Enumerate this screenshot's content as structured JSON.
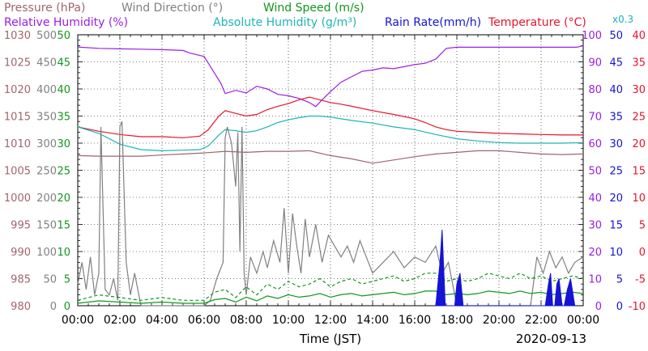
{
  "legend": {
    "pressure": {
      "label": "Pressure (hPa)",
      "color": "#a0646e"
    },
    "wind_direction": {
      "label": "Wind Direction (°)",
      "color": "#808080"
    },
    "wind_speed": {
      "label": "Wind Speed (m/s)",
      "color": "#12961e"
    },
    "relative_humidity": {
      "label": "Relative Humidity (%)",
      "color": "#9b1ee6"
    },
    "absolute_humidity": {
      "label": "Absolute Humidity (g/m³)",
      "color": "#1eb4b4"
    },
    "rain_rate": {
      "label": "Rain Rate(mm/h)",
      "color": "#1414d2"
    },
    "temperature": {
      "label": "Temperature (°C)",
      "color": "#e6142d"
    },
    "scale_note": {
      "label": "x0.3",
      "color": "#1eb4b4"
    }
  },
  "chart_data": {
    "type": "line",
    "xlabel": "Time (JST)",
    "date": "2020-09-13",
    "x_ticks": [
      "00:00",
      "02:00",
      "04:00",
      "06:00",
      "08:00",
      "10:00",
      "12:00",
      "14:00",
      "16:00",
      "18:00",
      "20:00",
      "22:00",
      "00:00"
    ],
    "axes": {
      "pressure": {
        "ticks": [
          "980",
          "985",
          "990",
          "995",
          "1000",
          "1005",
          "1010",
          "1015",
          "1020",
          "1025",
          "1030"
        ],
        "range": [
          980,
          1030
        ],
        "color": "#a0646e"
      },
      "wind_direction": {
        "ticks": [
          "0",
          "50",
          "100",
          "150",
          "200",
          "250",
          "300",
          "350",
          "400",
          "450",
          "500"
        ],
        "range": [
          0,
          500
        ],
        "color": "#808080"
      },
      "wind_speed": {
        "ticks": [
          "0",
          "5",
          "10",
          "15",
          "20",
          "25",
          "30",
          "35",
          "40",
          "45",
          "50"
        ],
        "range": [
          0,
          50
        ],
        "color": "#12961e"
      },
      "relative_humidity": {
        "ticks": [
          "0",
          "10",
          "20",
          "30",
          "40",
          "50",
          "60",
          "70",
          "80",
          "90",
          "100"
        ],
        "range": [
          0,
          100
        ],
        "color": "#9b1ee6"
      },
      "rain_rate": {
        "ticks": [
          "0",
          "5",
          "10",
          "15",
          "20",
          "25",
          "30",
          "35",
          "40",
          "45",
          "50"
        ],
        "range": [
          0,
          50
        ],
        "color": "#1414d2"
      },
      "temperature": {
        "ticks": [
          "-10",
          "-5",
          "0",
          "5",
          "10",
          "15",
          "20",
          "25",
          "30",
          "35",
          "40"
        ],
        "range": [
          -10,
          40
        ],
        "color": "#e6142d"
      }
    },
    "series": [
      {
        "name": "Pressure (hPa)",
        "axis": "pressure",
        "x": [
          0,
          1,
          2,
          3,
          4,
          5,
          6,
          7,
          8,
          9,
          10,
          11,
          12,
          13,
          14,
          15,
          16,
          17,
          18,
          19,
          20,
          21,
          22,
          23,
          24
        ],
        "y": [
          1007.7,
          1007.6,
          1007.6,
          1007.6,
          1007.8,
          1008.0,
          1008.2,
          1008.5,
          1008.3,
          1008.5,
          1008.5,
          1008.6,
          1007.7,
          1007.1,
          1006.3,
          1006.9,
          1007.5,
          1008.0,
          1008.3,
          1008.6,
          1008.6,
          1008.3,
          1008.0,
          1007.9,
          1008.0
        ]
      },
      {
        "name": "Relative Humidity (%)",
        "axis": "relative_humidity",
        "x": [
          0,
          1,
          2,
          3,
          4,
          5,
          5.3,
          6,
          6.8,
          7,
          7.5,
          8,
          8.5,
          9,
          9.5,
          10,
          10.5,
          11,
          11.3,
          11.6,
          12,
          12.5,
          13,
          13.5,
          14,
          14.5,
          15,
          16,
          16.5,
          17,
          17.5,
          18,
          19,
          20,
          21,
          22,
          23,
          23.7,
          24
        ],
        "y": [
          95.5,
          95.0,
          94.8,
          94.7,
          94.5,
          94.2,
          93.3,
          92.0,
          82.0,
          78.3,
          79.5,
          78.5,
          81.0,
          80.0,
          78.0,
          77.5,
          76.5,
          75.0,
          73.5,
          76.0,
          79.0,
          82.5,
          84.5,
          86.5,
          87.0,
          87.8,
          87.5,
          89.0,
          89.5,
          91.0,
          95.0,
          95.4,
          95.4,
          95.4,
          95.4,
          95.4,
          95.4,
          95.4,
          96.0
        ]
      },
      {
        "name": "Temperature (°C)",
        "axis": "temperature",
        "x": [
          0,
          1,
          2,
          3,
          4,
          5,
          5.8,
          6.2,
          6.7,
          7,
          7.5,
          8,
          8.5,
          9,
          9.5,
          10,
          10.5,
          11,
          11.5,
          12,
          12.5,
          13,
          14,
          15,
          16,
          16.5,
          17,
          17.5,
          18,
          19,
          20,
          21,
          22,
          23,
          24
        ],
        "y": [
          23.0,
          22.2,
          21.6,
          21.2,
          21.2,
          21.0,
          21.3,
          22.5,
          25.0,
          26.0,
          25.5,
          25.0,
          25.3,
          26.2,
          26.8,
          27.3,
          28.0,
          28.5,
          28.0,
          27.5,
          27.2,
          26.8,
          26.0,
          25.3,
          24.5,
          23.8,
          23.0,
          22.5,
          22.2,
          22.0,
          21.8,
          21.7,
          21.6,
          21.5,
          21.5
        ]
      },
      {
        "name": "Absolute Humidity (g/m³)",
        "axis": "temperature",
        "x": [
          0,
          1,
          2,
          3,
          4,
          5,
          5.8,
          6.2,
          6.7,
          7,
          7.5,
          8,
          8.5,
          9,
          9.5,
          10,
          10.5,
          11,
          11.5,
          12,
          12.5,
          13,
          14,
          15,
          16,
          17,
          18,
          19,
          20,
          21,
          22,
          23,
          24
        ],
        "y": [
          23.0,
          21.8,
          19.8,
          18.8,
          18.6,
          18.7,
          18.8,
          19.5,
          21.5,
          22.5,
          22.3,
          22.0,
          22.3,
          23.0,
          23.8,
          24.3,
          24.7,
          25.0,
          25.0,
          24.8,
          24.5,
          24.2,
          23.7,
          23.0,
          22.5,
          21.6,
          20.8,
          20.4,
          20.1,
          20.0,
          20.0,
          20.0,
          20.1
        ]
      },
      {
        "name": "Wind Direction (°)",
        "axis": "wind_direction",
        "x": [
          0,
          0.2,
          0.4,
          0.6,
          0.8,
          1.0,
          1.1,
          1.3,
          1.5,
          1.7,
          1.9,
          2.0,
          2.1,
          2.3,
          2.5,
          2.7,
          3,
          3.5,
          4,
          4.5,
          5,
          5.5,
          6,
          6.3,
          6.6,
          6.9,
          7.0,
          7.1,
          7.3,
          7.5,
          7.6,
          7.7,
          7.8,
          7.9,
          8.0,
          8.2,
          8.5,
          8.8,
          9.0,
          9.3,
          9.6,
          9.8,
          10.0,
          10.2,
          10.4,
          10.6,
          10.8,
          11.0,
          11.3,
          11.6,
          11.9,
          12.2,
          12.5,
          12.8,
          13.1,
          13.4,
          13.7,
          14.0,
          14.5,
          15.0,
          15.5,
          16.0,
          16.5,
          17.0,
          17.3,
          17.6,
          18,
          19,
          20,
          21,
          21.5,
          21.8,
          22.1,
          22.4,
          22.7,
          23.0,
          23.3,
          23.6,
          24
        ],
        "y": [
          40,
          80,
          30,
          90,
          20,
          60,
          330,
          30,
          20,
          50,
          10,
          330,
          340,
          80,
          20,
          60,
          0,
          0,
          0,
          0,
          0,
          0,
          0,
          10,
          50,
          80,
          310,
          330,
          300,
          220,
          320,
          100,
          330,
          60,
          20,
          90,
          60,
          100,
          70,
          120,
          80,
          180,
          60,
          170,
          110,
          60,
          160,
          90,
          150,
          80,
          130,
          110,
          90,
          110,
          80,
          120,
          90,
          60,
          80,
          100,
          70,
          90,
          80,
          110,
          60,
          80,
          0,
          0,
          0,
          0,
          0,
          90,
          60,
          100,
          70,
          90,
          60,
          80,
          90
        ]
      },
      {
        "name": "Wind Speed (m/s)",
        "axis": "wind_speed",
        "x": [
          0,
          1,
          2,
          3,
          4,
          5,
          6,
          6.5,
          7,
          7.5,
          8,
          8.5,
          9,
          9.5,
          10,
          10.5,
          11,
          11.5,
          12,
          12.5,
          13,
          13.5,
          14,
          14.5,
          15,
          15.5,
          16,
          16.5,
          17,
          17.5,
          18,
          18.5,
          19,
          19.5,
          20,
          20.5,
          21,
          21.5,
          22,
          22.5,
          23,
          23.5,
          24
        ],
        "y": [
          1,
          2,
          1.5,
          1,
          1.5,
          1,
          1,
          2.5,
          3,
          1.5,
          3.5,
          2,
          4,
          3,
          4.5,
          3.5,
          4,
          5,
          3.5,
          4.5,
          5,
          4,
          4.5,
          5,
          5.5,
          4.5,
          5,
          6,
          6,
          4.5,
          5,
          4.5,
          5,
          6,
          5.5,
          5,
          6,
          5,
          5.5,
          4.5,
          5,
          5.5,
          5
        ]
      },
      {
        "name": "Rain Rate(mm/h)",
        "axis": "rain_rate",
        "type": "area",
        "x": [
          17.0,
          17.2,
          17.3,
          17.45,
          17.6,
          17.9,
          18.0,
          18.15,
          18.3,
          22.2,
          22.35,
          22.45,
          22.55,
          22.65,
          22.75,
          22.85,
          23.0,
          23.1,
          23.25,
          23.4,
          23.6
        ],
        "y": [
          0,
          8,
          14,
          0,
          0,
          0,
          4,
          6,
          0,
          0,
          4,
          6,
          0,
          0,
          4,
          5,
          0,
          0,
          3,
          5,
          0
        ]
      }
    ]
  }
}
